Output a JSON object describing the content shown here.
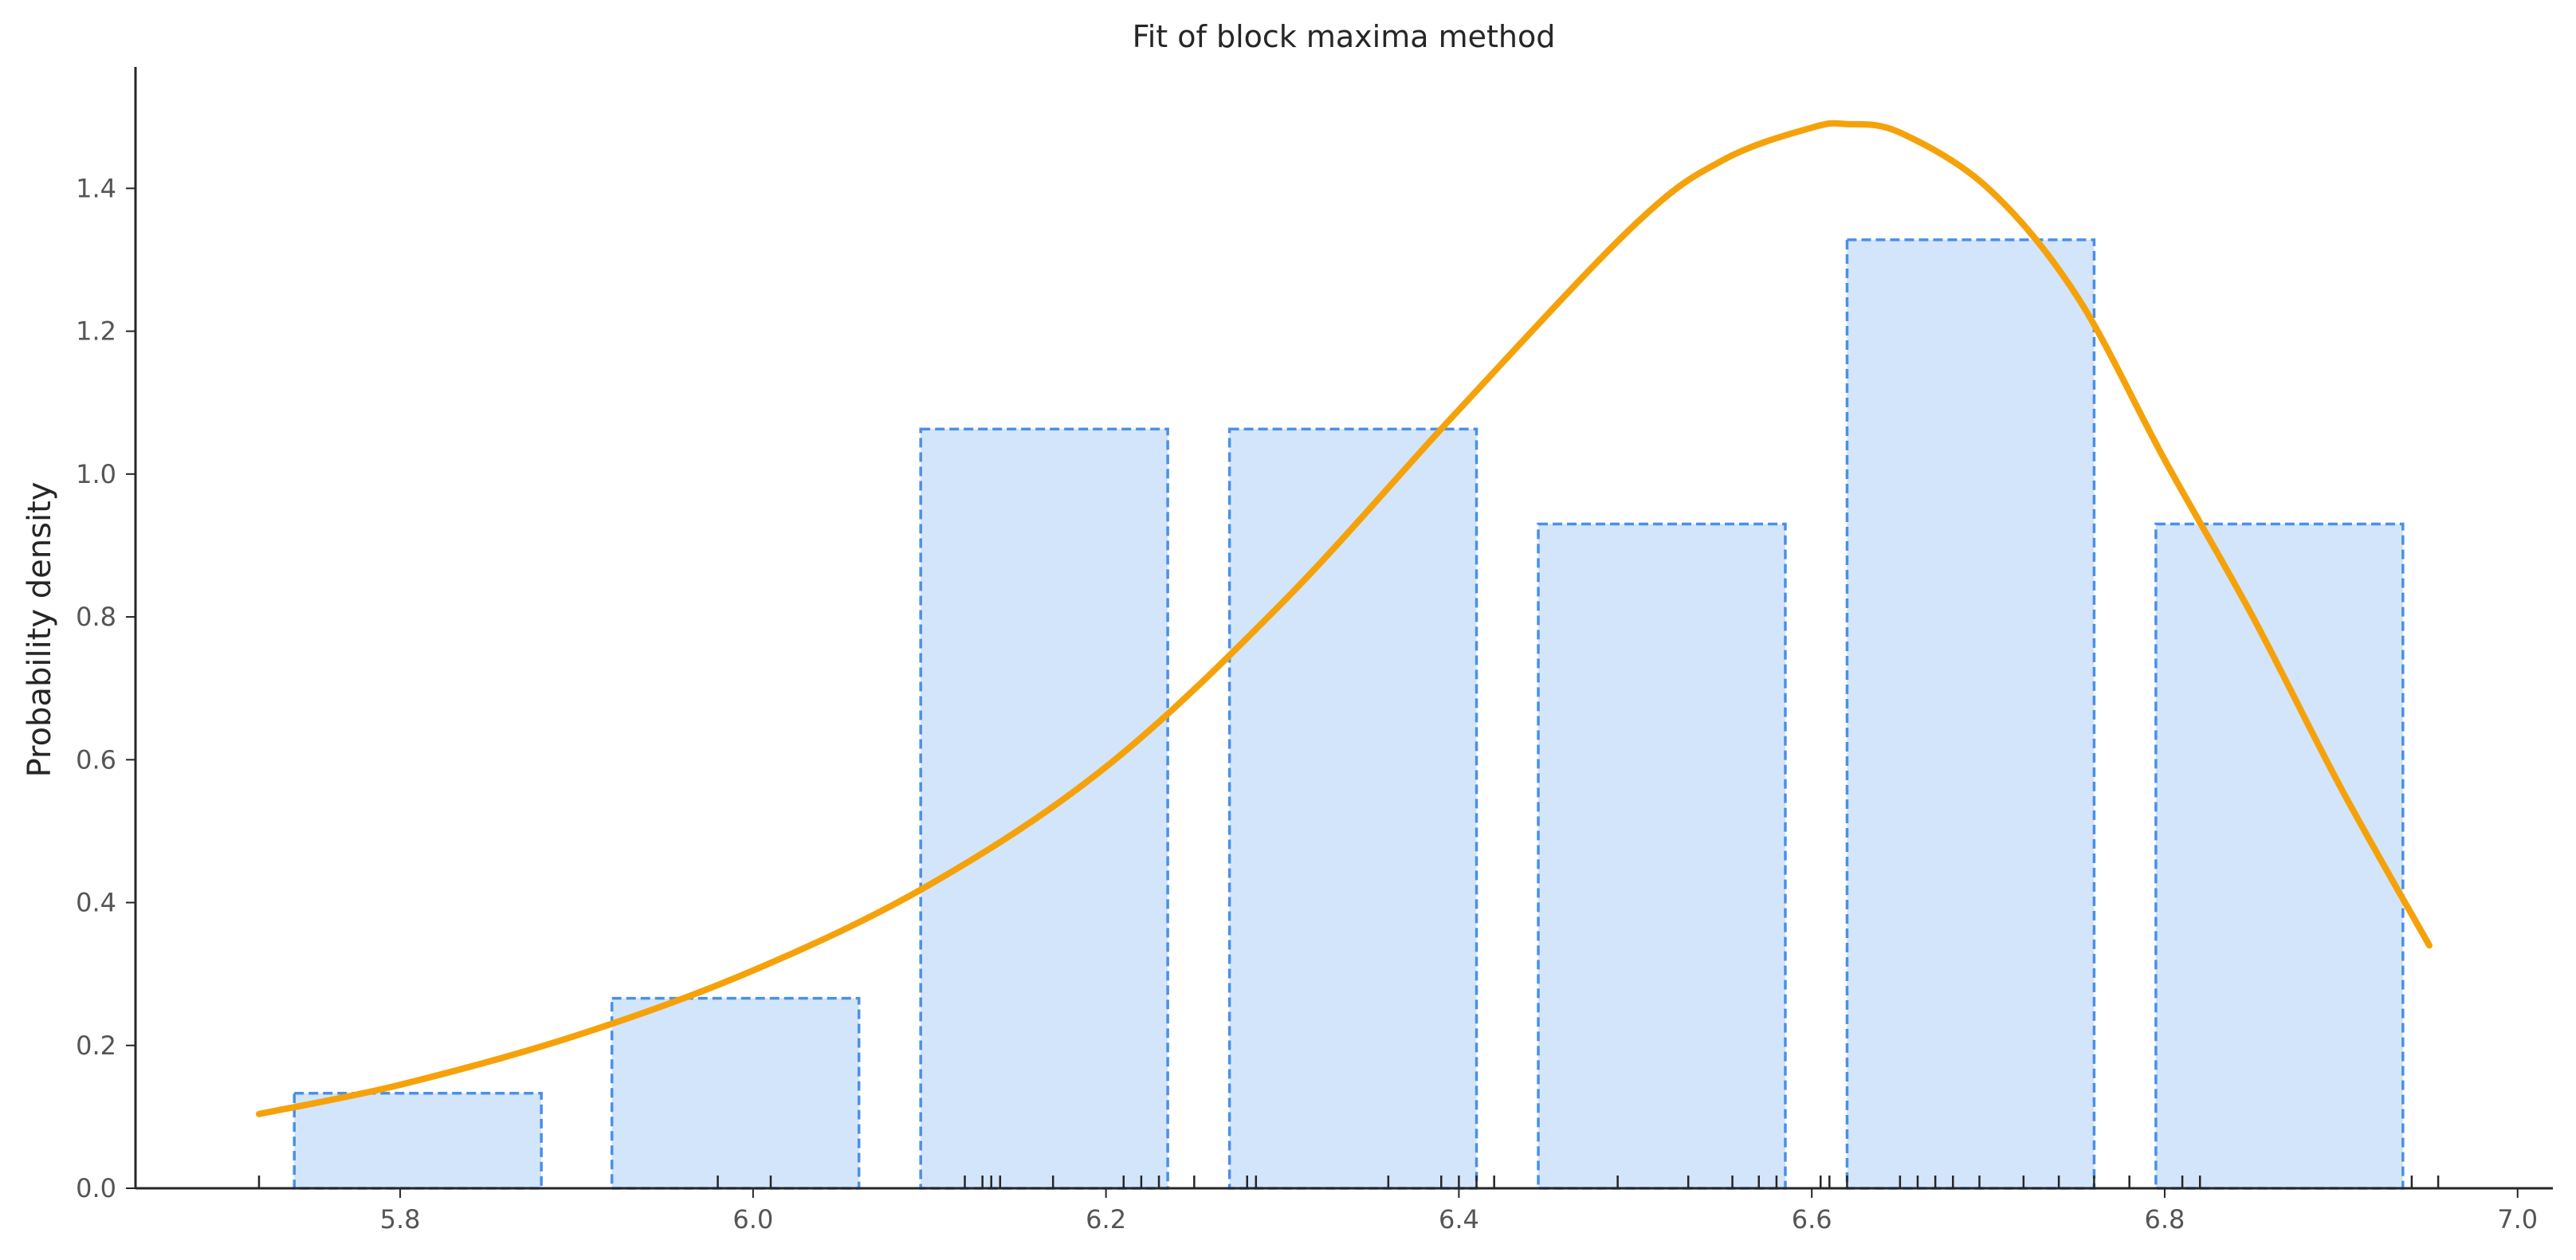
{
  "chart_data": {
    "type": "bar",
    "title": "Fit of block maxima method",
    "xlabel": "",
    "ylabel": "Probability density",
    "xlim": [
      5.65,
      7.02
    ],
    "ylim": [
      0.0,
      1.57
    ],
    "x_ticks": [
      5.8,
      6.0,
      6.2,
      6.4,
      6.6,
      6.8,
      7.0
    ],
    "x_tick_labels": [
      "5.8",
      "6.0",
      "6.2",
      "6.4",
      "6.6",
      "6.8",
      "7.0"
    ],
    "y_ticks": [
      0.0,
      0.2,
      0.4,
      0.6,
      0.8,
      1.0,
      1.2,
      1.4
    ],
    "y_tick_labels": [
      "0.0",
      "0.2",
      "0.4",
      "0.6",
      "0.8",
      "1.0",
      "1.2",
      "1.4"
    ],
    "grid": false,
    "bins": [
      {
        "x0": 5.74,
        "x1": 5.88,
        "value": 0.133
      },
      {
        "x0": 5.92,
        "x1": 6.06,
        "value": 0.266
      },
      {
        "x0": 6.095,
        "x1": 6.235,
        "value": 1.063
      },
      {
        "x0": 6.27,
        "x1": 6.41,
        "value": 1.063
      },
      {
        "x0": 6.445,
        "x1": 6.585,
        "value": 0.93
      },
      {
        "x0": 6.62,
        "x1": 6.76,
        "value": 1.328
      },
      {
        "x0": 6.795,
        "x1": 6.935,
        "value": 0.93
      }
    ],
    "fit_curve": {
      "x": [
        5.72,
        5.8,
        5.9,
        6.0,
        6.1,
        6.2,
        6.3,
        6.4,
        6.5,
        6.55,
        6.6,
        6.62,
        6.65,
        6.7,
        6.75,
        6.8,
        6.85,
        6.9,
        6.95
      ],
      "y": [
        0.104,
        0.145,
        0.214,
        0.305,
        0.425,
        0.59,
        0.82,
        1.09,
        1.35,
        1.44,
        1.485,
        1.49,
        1.478,
        1.4,
        1.25,
        1.02,
        0.8,
        0.56,
        0.34
      ],
      "color": "#f5a20a"
    },
    "rug": [
      5.72,
      5.98,
      6.01,
      6.12,
      6.13,
      6.135,
      6.14,
      6.17,
      6.21,
      6.22,
      6.23,
      6.25,
      6.28,
      6.285,
      6.36,
      6.39,
      6.4,
      6.41,
      6.42,
      6.49,
      6.53,
      6.555,
      6.57,
      6.58,
      6.605,
      6.61,
      6.62,
      6.65,
      6.66,
      6.67,
      6.68,
      6.695,
      6.72,
      6.74,
      6.76,
      6.78,
      6.81,
      6.82,
      6.94,
      6.955
    ],
    "bar_fill": "#d3e5fb",
    "bar_edge": "#4a90e8"
  }
}
